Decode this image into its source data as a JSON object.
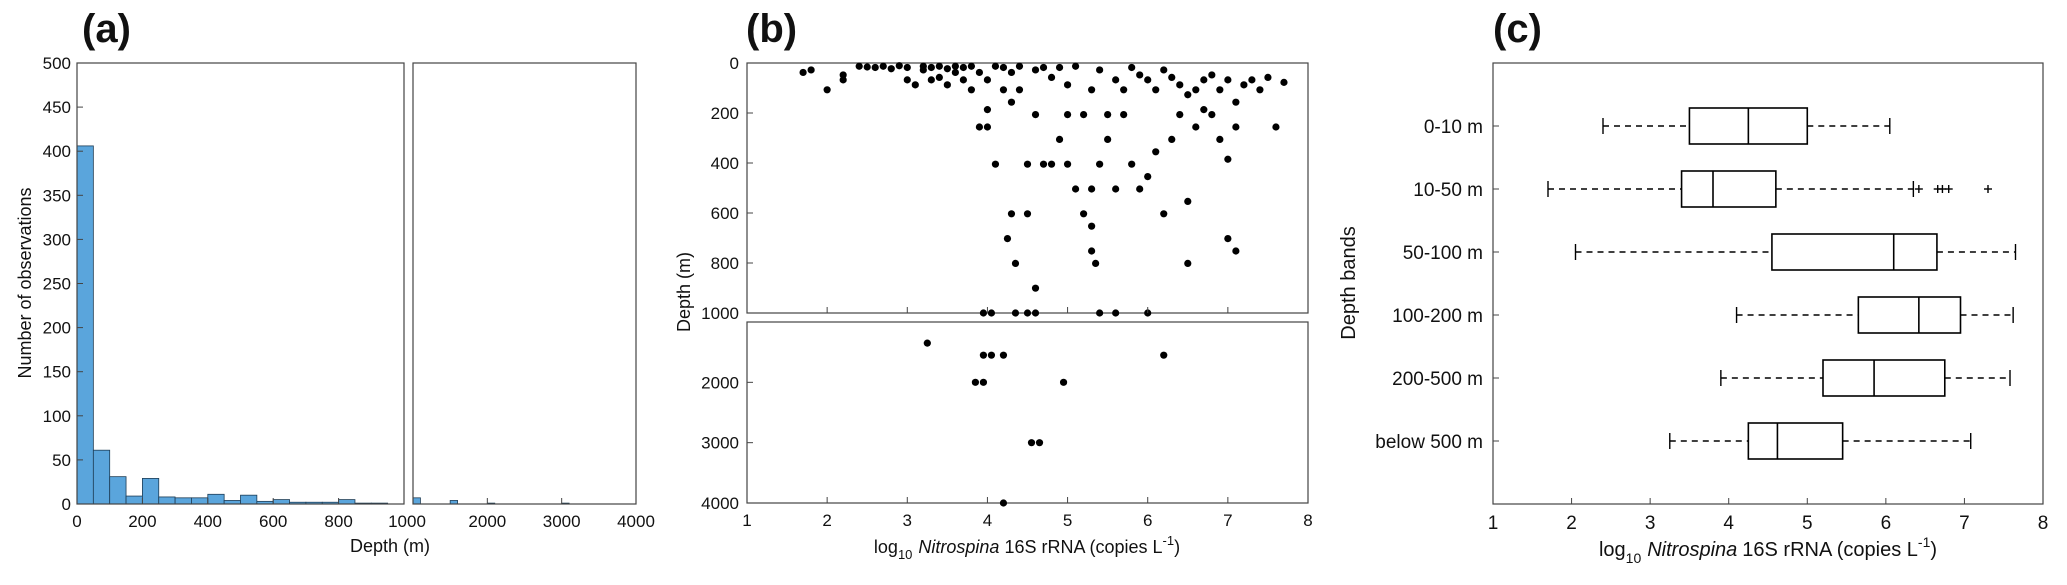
{
  "chart_data": [
    {
      "panel": "(a)",
      "type": "bar",
      "xlabel": "Depth (m)",
      "ylabel": "Number of observations",
      "ylim": [
        0,
        500
      ],
      "yticks": [
        "0",
        "50",
        "100",
        "150",
        "200",
        "250",
        "300",
        "350",
        "400",
        "450",
        "500"
      ],
      "color": "#5aa5dc",
      "left_axis": {
        "xlim": [
          0,
          1000
        ],
        "xticks": [
          "0",
          "200",
          "400",
          "600",
          "800",
          "1000"
        ],
        "bin_width": 50,
        "bin_starts": [
          0,
          50,
          100,
          150,
          200,
          250,
          300,
          350,
          400,
          450,
          500,
          550,
          600,
          650,
          700,
          750,
          800,
          850,
          900,
          950
        ],
        "values": [
          406,
          61,
          31,
          9,
          29,
          8,
          7,
          7,
          11,
          4,
          10,
          3,
          5,
          2,
          2,
          2,
          5,
          1,
          1,
          0
        ]
      },
      "right_axis": {
        "xlim": [
          1000,
          4000
        ],
        "xticks": [
          "1000",
          "2000",
          "3000",
          "4000"
        ],
        "bin_width": 100,
        "bin_starts": [
          1000,
          1500,
          2000,
          3000
        ],
        "values": [
          7,
          4,
          1,
          1
        ]
      }
    },
    {
      "panel": "(b)",
      "type": "scatter",
      "xlabel_prefix": "log",
      "xlabel_sub": "10",
      "xlabel_italic": "Nitrospina",
      "xlabel_rest": "16S rRNA (copies L",
      "xlabel_sup": "-1",
      "xlabel_end": ")",
      "ylabel": "Depth (m)",
      "xlim": [
        1,
        8
      ],
      "xticks": [
        "1",
        "2",
        "3",
        "4",
        "5",
        "6",
        "7",
        "8"
      ],
      "top_ylim": [
        0,
        1000
      ],
      "top_yticks": [
        "0",
        "200",
        "400",
        "600",
        "800",
        "1000"
      ],
      "bottom_ylim": [
        1000,
        4000
      ],
      "bottom_yticks": [
        "2000",
        "3000",
        "4000"
      ],
      "points": [
        [
          1.7,
          30
        ],
        [
          1.8,
          20
        ],
        [
          2.0,
          100
        ],
        [
          2.2,
          60
        ],
        [
          2.2,
          40
        ],
        [
          2.4,
          5
        ],
        [
          2.5,
          8
        ],
        [
          2.6,
          10
        ],
        [
          2.7,
          5
        ],
        [
          2.8,
          15
        ],
        [
          2.9,
          3
        ],
        [
          3.0,
          10
        ],
        [
          3.0,
          60
        ],
        [
          3.1,
          80
        ],
        [
          3.2,
          5
        ],
        [
          3.2,
          20
        ],
        [
          3.3,
          60
        ],
        [
          3.3,
          10
        ],
        [
          3.4,
          50
        ],
        [
          3.4,
          5
        ],
        [
          3.5,
          80
        ],
        [
          3.5,
          15
        ],
        [
          3.6,
          5
        ],
        [
          3.6,
          30
        ],
        [
          3.7,
          60
        ],
        [
          3.7,
          10
        ],
        [
          3.8,
          100
        ],
        [
          3.8,
          5
        ],
        [
          3.9,
          250
        ],
        [
          3.9,
          30
        ],
        [
          4.0,
          250
        ],
        [
          4.0,
          180
        ],
        [
          4.0,
          60
        ],
        [
          4.1,
          400
        ],
        [
          4.1,
          5
        ],
        [
          4.2,
          100
        ],
        [
          4.2,
          10
        ],
        [
          4.3,
          150
        ],
        [
          4.3,
          30
        ],
        [
          4.4,
          100
        ],
        [
          4.4,
          5
        ],
        [
          4.5,
          600
        ],
        [
          4.5,
          400
        ],
        [
          4.6,
          200
        ],
        [
          4.6,
          20
        ],
        [
          4.7,
          400
        ],
        [
          4.7,
          10
        ],
        [
          4.8,
          400
        ],
        [
          4.8,
          50
        ],
        [
          4.9,
          300
        ],
        [
          4.9,
          10
        ],
        [
          5.0,
          200
        ],
        [
          5.0,
          400
        ],
        [
          5.0,
          80
        ],
        [
          5.1,
          500
        ],
        [
          5.1,
          5
        ],
        [
          5.2,
          600
        ],
        [
          5.2,
          200
        ],
        [
          5.3,
          500
        ],
        [
          5.3,
          100
        ],
        [
          5.4,
          400
        ],
        [
          5.4,
          20
        ],
        [
          5.5,
          200
        ],
        [
          5.5,
          300
        ],
        [
          5.6,
          500
        ],
        [
          5.6,
          60
        ],
        [
          5.7,
          100
        ],
        [
          5.7,
          200
        ],
        [
          5.8,
          400
        ],
        [
          5.8,
          10
        ],
        [
          5.9,
          500
        ],
        [
          5.9,
          40
        ],
        [
          6.0,
          450
        ],
        [
          6.0,
          60
        ],
        [
          6.1,
          350
        ],
        [
          6.1,
          100
        ],
        [
          6.2,
          600
        ],
        [
          6.2,
          20
        ],
        [
          6.3,
          300
        ],
        [
          6.3,
          50
        ],
        [
          6.4,
          200
        ],
        [
          6.4,
          80
        ],
        [
          6.5,
          550
        ],
        [
          6.5,
          120
        ],
        [
          6.6,
          100
        ],
        [
          6.6,
          250
        ],
        [
          6.7,
          60
        ],
        [
          6.7,
          180
        ],
        [
          6.8,
          200
        ],
        [
          6.8,
          40
        ],
        [
          6.9,
          300
        ],
        [
          6.9,
          100
        ],
        [
          7.0,
          380
        ],
        [
          7.0,
          60
        ],
        [
          7.1,
          250
        ],
        [
          7.1,
          150
        ],
        [
          7.2,
          80
        ],
        [
          7.3,
          60
        ],
        [
          7.4,
          100
        ],
        [
          7.5,
          50
        ],
        [
          7.6,
          250
        ],
        [
          7.7,
          70
        ],
        [
          4.25,
          700
        ],
        [
          4.3,
          600
        ],
        [
          4.35,
          800
        ],
        [
          4.6,
          900
        ],
        [
          5.3,
          650
        ],
        [
          5.3,
          750
        ],
        [
          5.35,
          800
        ],
        [
          6.5,
          800
        ],
        [
          7.0,
          700
        ],
        [
          7.1,
          750
        ],
        [
          3.95,
          1000
        ],
        [
          4.05,
          1000
        ],
        [
          4.35,
          1000
        ],
        [
          4.5,
          1000
        ],
        [
          4.6,
          1000
        ],
        [
          5.4,
          1000
        ],
        [
          5.6,
          1000
        ],
        [
          6.0,
          1000
        ],
        [
          3.25,
          1350
        ],
        [
          3.95,
          1550
        ],
        [
          4.05,
          1550
        ],
        [
          4.2,
          1550
        ],
        [
          6.2,
          1550
        ],
        [
          3.85,
          2000
        ],
        [
          3.95,
          2000
        ],
        [
          4.95,
          2000
        ],
        [
          4.55,
          3000
        ],
        [
          4.65,
          3000
        ],
        [
          4.2,
          4000
        ]
      ]
    },
    {
      "panel": "(c)",
      "type": "box",
      "ylabel": "Depth bands",
      "xlabel_prefix": "log",
      "xlabel_sub": "10",
      "xlabel_italic": "Nitrospina",
      "xlabel_rest": "16S rRNA (copies L",
      "xlabel_sup": "-1",
      "xlabel_end": ")",
      "xlim": [
        1,
        8
      ],
      "xticks": [
        "1",
        "2",
        "3",
        "4",
        "5",
        "6",
        "7",
        "8"
      ],
      "boxes": [
        {
          "label": "0-10 m",
          "whisker_low": 2.4,
          "q1": 3.5,
          "median": 4.25,
          "q3": 5.0,
          "whisker_high": 6.05,
          "outliers": []
        },
        {
          "label": "10-50 m",
          "whisker_low": 1.7,
          "q1": 3.4,
          "median": 3.8,
          "q3": 4.6,
          "whisker_high": 6.35,
          "outliers": [
            6.42,
            6.66,
            6.72,
            6.8,
            7.3
          ]
        },
        {
          "label": "50-100 m",
          "whisker_low": 2.05,
          "q1": 4.55,
          "median": 6.1,
          "q3": 6.65,
          "whisker_high": 7.65,
          "outliers": []
        },
        {
          "label": "100-200 m",
          "whisker_low": 4.1,
          "q1": 5.65,
          "median": 6.42,
          "q3": 6.95,
          "whisker_high": 7.62,
          "outliers": []
        },
        {
          "label": "200-500 m",
          "whisker_low": 3.9,
          "q1": 5.2,
          "median": 5.85,
          "q3": 6.75,
          "whisker_high": 7.58,
          "outliers": []
        },
        {
          "label": "below 500 m",
          "whisker_low": 3.25,
          "q1": 4.25,
          "median": 4.62,
          "q3": 5.45,
          "whisker_high": 7.08,
          "outliers": []
        }
      ]
    }
  ]
}
